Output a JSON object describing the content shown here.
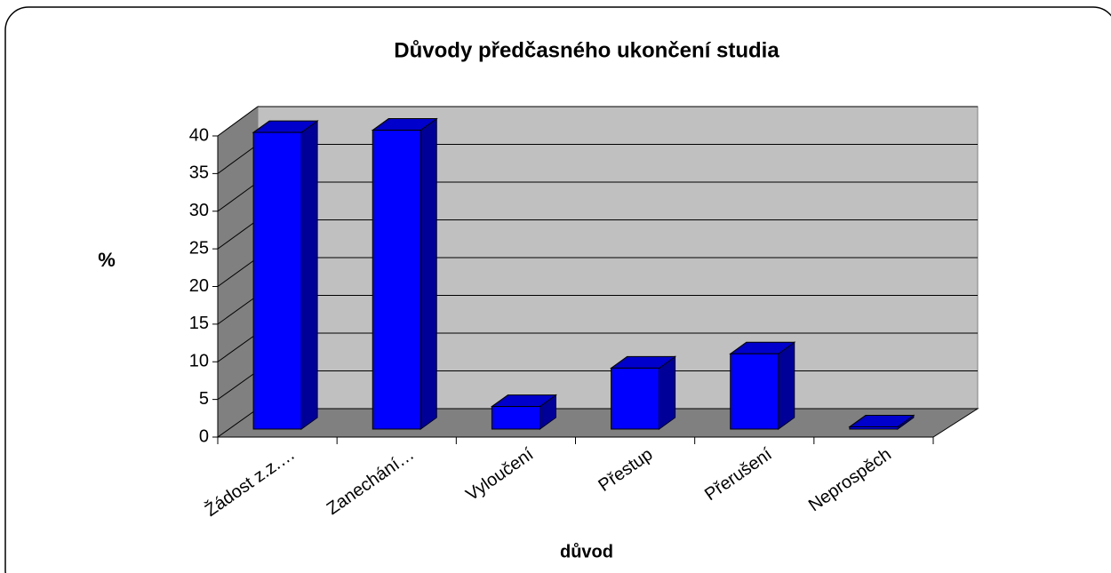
{
  "chart_data": {
    "type": "bar",
    "title": "Důvody předčasného ukončení studia",
    "xlabel": "důvod",
    "ylabel": "%",
    "categories": [
      "Žádost z.z.…",
      "Zanechání…",
      "Vyloučení",
      "Přestup",
      "Přerušení",
      "Neprospěch"
    ],
    "values": [
      39.4,
      39.7,
      3,
      8.1,
      10,
      0.3
    ],
    "color": "#0000ff",
    "ylim": [
      0,
      40
    ],
    "yticks": [
      0,
      5,
      10,
      15,
      20,
      25,
      30,
      35,
      40
    ],
    "grid": true
  }
}
